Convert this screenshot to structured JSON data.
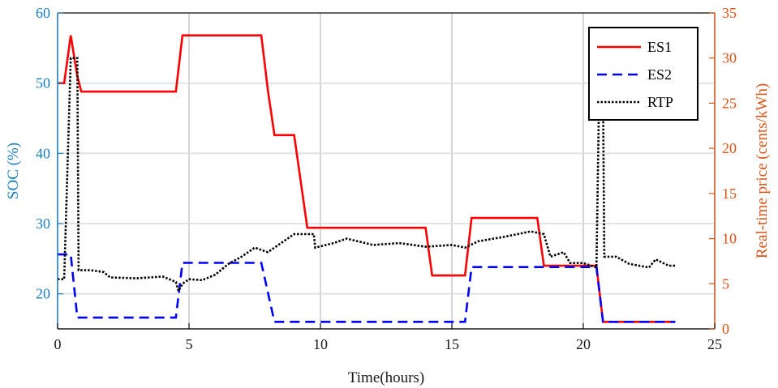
{
  "chart_data": {
    "type": "line",
    "xlabel": "Time(hours)",
    "ylabel_left": "SOC (%)",
    "ylabel_right": "Real-time price (cents/kWh)",
    "xlim": [
      0,
      25
    ],
    "ylim_left": [
      15,
      60
    ],
    "ylim_right": [
      0,
      35
    ],
    "x_ticks": [
      "0",
      "5",
      "10",
      "15",
      "20",
      "25"
    ],
    "y_left_ticks": [
      "20",
      "30",
      "40",
      "50",
      "60"
    ],
    "y_right_ticks": [
      "0",
      "5",
      "10",
      "15",
      "20",
      "25",
      "30",
      "35"
    ],
    "grid": true,
    "legend_position": "top-right",
    "colors": {
      "left_axis": "#1a7fc0",
      "right_axis": "#d95319",
      "grid": "#c8c8c8"
    },
    "series": [
      {
        "name": "ES1",
        "axis": "left",
        "color": "#ff0000",
        "style": "solid",
        "points": [
          [
            0,
            50
          ],
          [
            0.25,
            50
          ],
          [
            0.5,
            56.8
          ],
          [
            0.75,
            51
          ],
          [
            0.9,
            48.8
          ],
          [
            4.5,
            48.8
          ],
          [
            4.75,
            56.8
          ],
          [
            7.75,
            56.8
          ],
          [
            8,
            49
          ],
          [
            8.25,
            42.6
          ],
          [
            9,
            42.6
          ],
          [
            9.5,
            29.4
          ],
          [
            14,
            29.4
          ],
          [
            14.25,
            22.6
          ],
          [
            15.5,
            22.6
          ],
          [
            15.75,
            30.8
          ],
          [
            18.25,
            30.8
          ],
          [
            18.5,
            24
          ],
          [
            20.5,
            24
          ],
          [
            20.75,
            16
          ],
          [
            23.5,
            16
          ]
        ]
      },
      {
        "name": "ES2",
        "axis": "left",
        "color": "#0000ff",
        "style": "dashed",
        "points": [
          [
            0,
            25.6
          ],
          [
            0.5,
            25.6
          ],
          [
            0.75,
            16.6
          ],
          [
            4.5,
            16.6
          ],
          [
            4.75,
            24.4
          ],
          [
            7.75,
            24.4
          ],
          [
            8.25,
            16
          ],
          [
            15.5,
            16
          ],
          [
            15.75,
            23.8
          ],
          [
            20.5,
            23.8
          ],
          [
            20.75,
            16
          ],
          [
            23.5,
            16
          ]
        ]
      },
      {
        "name": "RTP",
        "axis": "right",
        "color": "#000000",
        "style": "dotted",
        "points": [
          [
            0,
            5.5
          ],
          [
            0.25,
            5.5
          ],
          [
            0.5,
            30
          ],
          [
            0.75,
            30
          ],
          [
            0.8,
            6.5
          ],
          [
            1.25,
            6.5
          ],
          [
            1.75,
            6.3
          ],
          [
            2,
            5.7
          ],
          [
            3,
            5.6
          ],
          [
            4,
            5.8
          ],
          [
            4.5,
            5.2
          ],
          [
            4.6,
            4.2
          ],
          [
            4.75,
            5
          ],
          [
            5,
            5.5
          ],
          [
            5.5,
            5.4
          ],
          [
            6,
            6
          ],
          [
            6.5,
            7.2
          ],
          [
            7,
            8
          ],
          [
            7.5,
            9
          ],
          [
            8,
            8.5
          ],
          [
            8.5,
            9.5
          ],
          [
            9,
            10.5
          ],
          [
            9.75,
            10.5
          ],
          [
            9.8,
            9
          ],
          [
            10.5,
            9.5
          ],
          [
            11,
            10
          ],
          [
            12,
            9.3
          ],
          [
            13,
            9.5
          ],
          [
            14,
            9.1
          ],
          [
            15,
            9.3
          ],
          [
            15.5,
            9
          ],
          [
            16,
            9.7
          ],
          [
            17,
            10.2
          ],
          [
            17.5,
            10.5
          ],
          [
            18,
            10.8
          ],
          [
            18.5,
            10.5
          ],
          [
            18.75,
            8
          ],
          [
            19.25,
            8.5
          ],
          [
            19.5,
            7.3
          ],
          [
            20,
            7.3
          ],
          [
            20.5,
            6.8
          ],
          [
            20.6,
            25.5
          ],
          [
            20.75,
            26
          ],
          [
            20.8,
            8
          ],
          [
            21.25,
            8
          ],
          [
            21.75,
            7.2
          ],
          [
            22.5,
            6.8
          ],
          [
            22.75,
            7.7
          ],
          [
            23.25,
            7
          ],
          [
            23.5,
            7
          ]
        ]
      }
    ]
  }
}
